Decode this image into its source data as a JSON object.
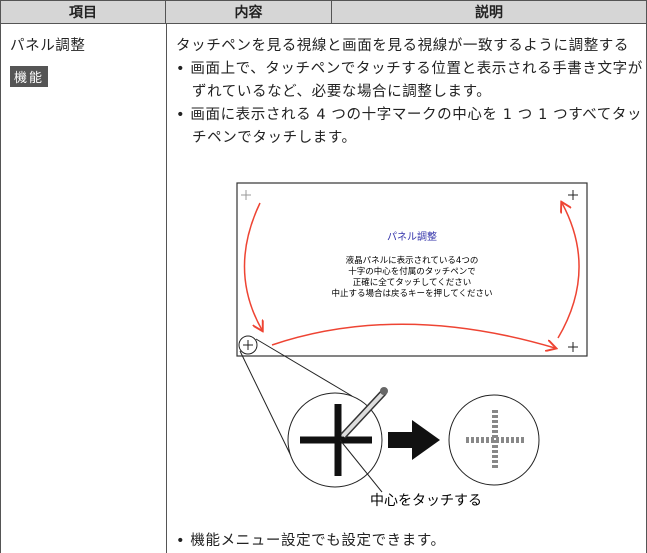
{
  "table": {
    "header": [
      "項目",
      "内容",
      "説明"
    ],
    "item": "パネル調整",
    "badge": "機能",
    "description": "タッチペンを見る視線と画面を見る視線が一致するように調整する",
    "bullets": [
      "画面上で、タッチペンでタッチする位置と表示される手書き文字がずれているなど、必要な場合に調整します。",
      "画面に表示される 4 つの十字マークの中心を 1 つ 1 つすべてタッチペンでタッチします。"
    ],
    "figure": {
      "screen_title": "パネル調整",
      "screen_lines": [
        "液晶パネルに表示されている4つの",
        "十字の中心を付属のタッチペンで",
        "正確に全てタッチしてください",
        "中止する場合は戻るキーを押してください"
      ],
      "caption": "中心をタッチする"
    },
    "final_bullet": "機能メニュー設定でも設定できます。"
  }
}
